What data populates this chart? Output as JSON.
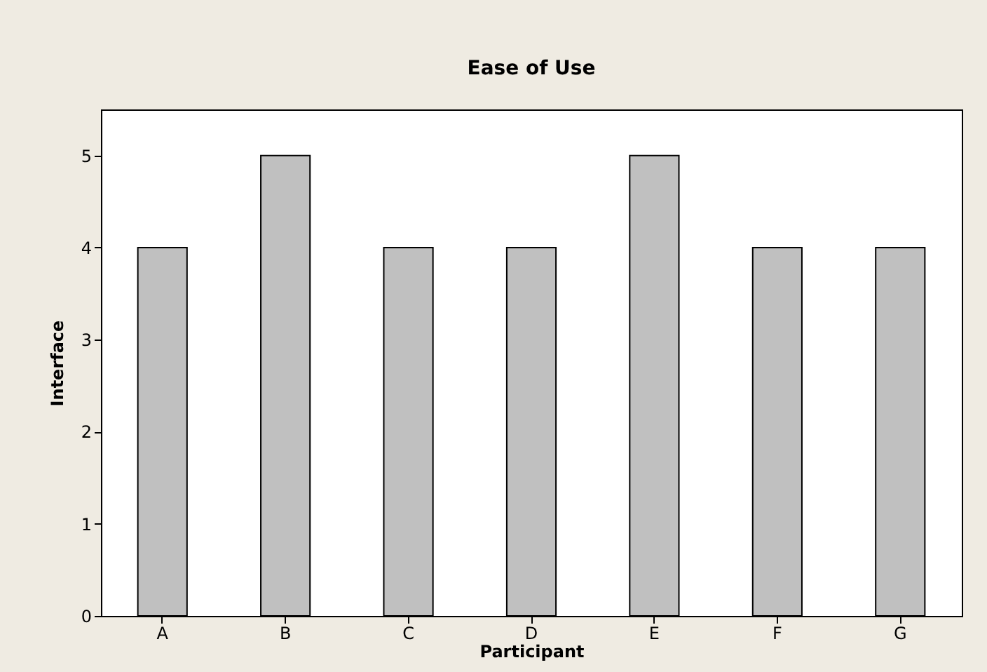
{
  "chart_data": {
    "type": "bar",
    "title": "Ease of Use",
    "xlabel": "Participant",
    "ylabel": "Interface",
    "categories": [
      "A",
      "B",
      "C",
      "D",
      "E",
      "F",
      "G"
    ],
    "values": [
      4,
      5,
      4,
      4,
      5,
      4,
      4
    ],
    "color": "#c0c0c0",
    "ylim": [
      0,
      5.5
    ],
    "yticks": [
      0,
      1,
      2,
      3,
      4,
      5
    ],
    "grid": false
  }
}
